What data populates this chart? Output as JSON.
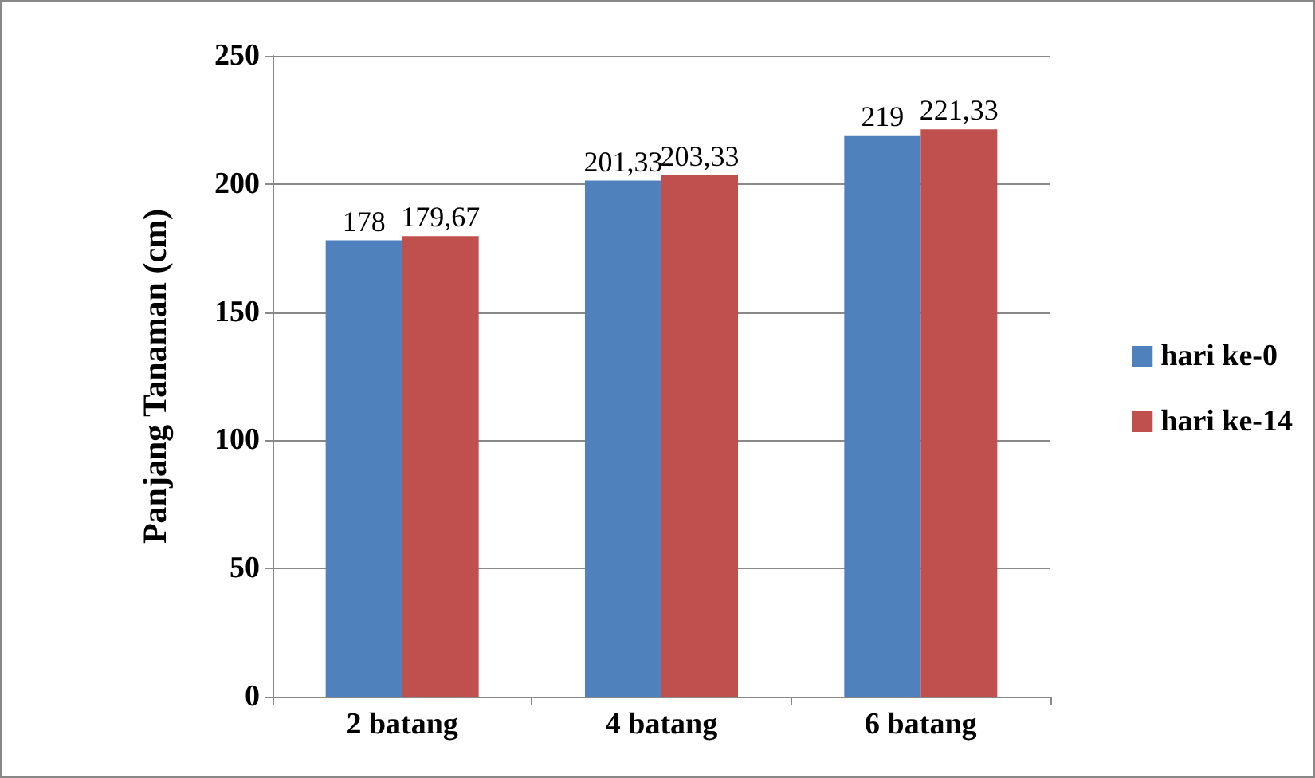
{
  "chart_data": {
    "type": "bar",
    "ylabel": "Panjang Tanaman (cm)",
    "categories": [
      "2 batang",
      "4 batang",
      "6 batang"
    ],
    "series": [
      {
        "name": "hari ke-0",
        "color": "#4f81bd",
        "values": [
          178,
          201.33,
          219
        ],
        "value_labels": [
          "178",
          "201,33",
          "219"
        ]
      },
      {
        "name": "hari ke-14",
        "color": "#c0504d",
        "values": [
          179.67,
          203.33,
          221.33
        ],
        "value_labels": [
          "179,67",
          "203,33",
          "221,33"
        ]
      }
    ],
    "ylim": [
      0,
      250
    ],
    "yticks": [
      0,
      50,
      100,
      150,
      200,
      250
    ],
    "grid": "y",
    "legend": "right"
  }
}
